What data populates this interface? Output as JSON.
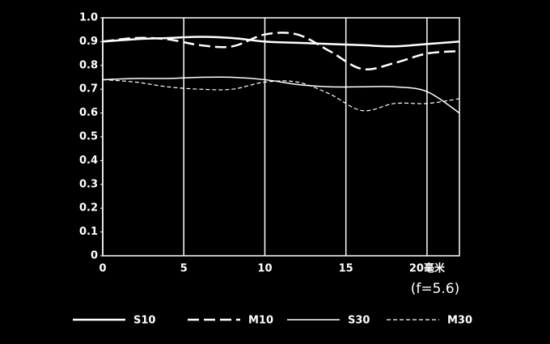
{
  "chart_data": {
    "type": "line",
    "annotation": "(f=5.6)",
    "x": [
      0,
      2,
      4,
      6,
      8,
      10,
      12,
      14,
      16,
      18,
      20,
      22
    ],
    "series": [
      {
        "name": "S10",
        "color": "#ffffff",
        "style": "solid",
        "width": 2.5,
        "values": [
          0.9,
          0.91,
          0.915,
          0.92,
          0.915,
          0.9,
          0.895,
          0.89,
          0.885,
          0.88,
          0.89,
          0.9
        ]
      },
      {
        "name": "M10",
        "color": "#ffffff",
        "style": "dashed",
        "width": 2.5,
        "values": [
          0.9,
          0.915,
          0.91,
          0.885,
          0.88,
          0.93,
          0.93,
          0.86,
          0.785,
          0.81,
          0.85,
          0.86
        ]
      },
      {
        "name": "S30",
        "color": "#ffffff",
        "style": "solid",
        "width": 1.5,
        "values": [
          0.74,
          0.745,
          0.745,
          0.75,
          0.75,
          0.74,
          0.72,
          0.71,
          0.71,
          0.71,
          0.69,
          0.6
        ]
      },
      {
        "name": "M30",
        "color": "#ffffff",
        "style": "dotted",
        "width": 1.2,
        "values": [
          0.74,
          0.73,
          0.71,
          0.7,
          0.7,
          0.73,
          0.73,
          0.68,
          0.61,
          0.64,
          0.64,
          0.66
        ]
      }
    ],
    "xlim": [
      0,
      22
    ],
    "xticks": [
      0,
      5,
      10,
      15,
      {
        "value": 20,
        "label": "20毫米"
      }
    ],
    "ylim": [
      0,
      1
    ],
    "yticks": [
      0,
      0.1,
      0.2,
      0.3,
      0.4,
      0.5,
      0.6,
      0.7,
      0.8,
      0.9,
      {
        "value": 1,
        "label": "1.0"
      }
    ],
    "grid": "x"
  }
}
